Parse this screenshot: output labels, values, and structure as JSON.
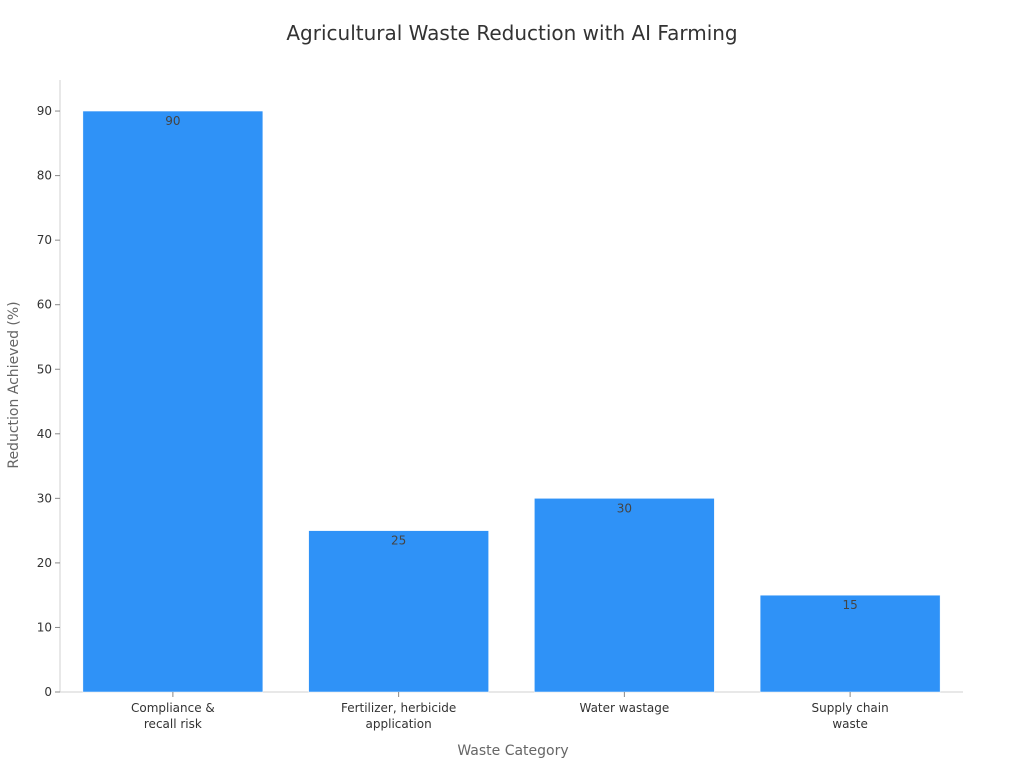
{
  "chart_data": {
    "type": "bar",
    "title": "Agricultural Waste Reduction with AI Farming",
    "xlabel": "Waste Category",
    "ylabel": "Reduction Achieved (%)",
    "categories": [
      [
        "Compliance &",
        "recall risk"
      ],
      [
        "Fertilizer, herbicide",
        "application"
      ],
      [
        "Water wastage"
      ],
      [
        "Supply chain",
        "waste"
      ]
    ],
    "values": [
      90,
      25,
      30,
      15
    ],
    "data_labels": [
      "90",
      "25",
      "30",
      "15"
    ],
    "ylim": [
      0,
      95
    ],
    "yticks": [
      0,
      10,
      20,
      30,
      40,
      50,
      60,
      70,
      80,
      90
    ],
    "grid": false,
    "legend": "none",
    "bar_color": "#2f92f7"
  }
}
